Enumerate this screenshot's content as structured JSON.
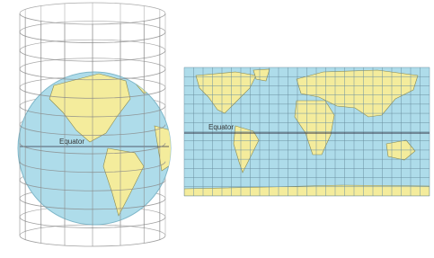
{
  "globe": {
    "label": "Equator"
  },
  "map": {
    "label": "Equator"
  }
}
